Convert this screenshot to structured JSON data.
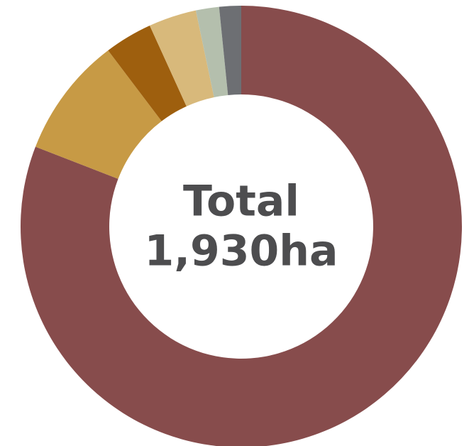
{
  "chart_data": {
    "type": "donut",
    "center_text": [
      "Total",
      "1,930ha"
    ],
    "values": [
      80.8,
      8.8,
      3.5,
      3.5,
      1.7,
      1.6
    ],
    "colors": [
      "#874c4c",
      "#c79a45",
      "#9e5f0e",
      "#d8b97b",
      "#b4bfad",
      "#6d6f73"
    ]
  }
}
